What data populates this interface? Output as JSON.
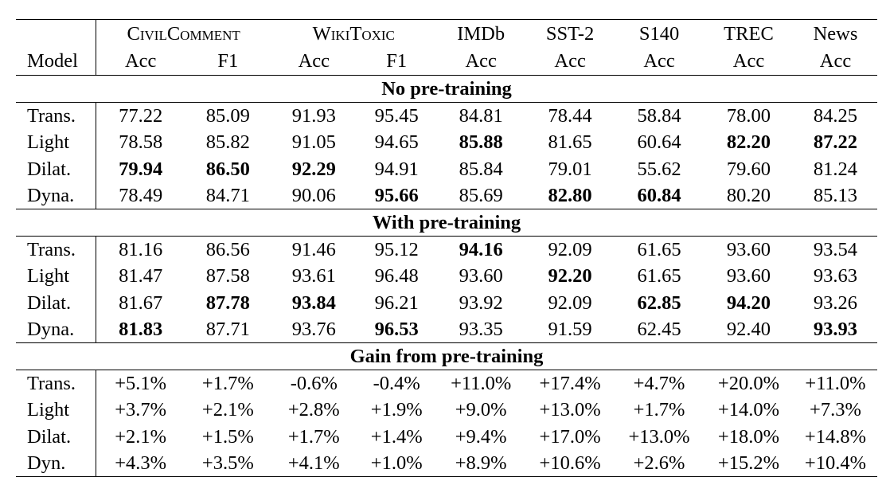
{
  "header": {
    "model_label": "Model",
    "groups": [
      {
        "name": "CivilComment",
        "span": 2,
        "small_caps": true
      },
      {
        "name": "WikiToxic",
        "span": 2,
        "small_caps": true
      },
      {
        "name": "IMDb",
        "span": 1,
        "small_caps": false
      },
      {
        "name": "SST-2",
        "span": 1,
        "small_caps": false
      },
      {
        "name": "S140",
        "span": 1,
        "small_caps": false
      },
      {
        "name": "TREC",
        "span": 1,
        "small_caps": false
      },
      {
        "name": "News",
        "span": 1,
        "small_caps": false
      }
    ],
    "metrics": [
      "Acc",
      "F1",
      "Acc",
      "F1",
      "Acc",
      "Acc",
      "Acc",
      "Acc",
      "Acc"
    ]
  },
  "sections": [
    {
      "title": "No pre-training",
      "rows": [
        {
          "model": "Trans.",
          "values": [
            "77.22",
            "85.09",
            "91.93",
            "95.45",
            "84.81",
            "78.44",
            "58.84",
            "78.00",
            "84.25"
          ],
          "bold": []
        },
        {
          "model": "Light",
          "values": [
            "78.58",
            "85.82",
            "91.05",
            "94.65",
            "85.88",
            "81.65",
            "60.64",
            "82.20",
            "87.22"
          ],
          "bold": [
            4,
            7,
            8
          ]
        },
        {
          "model": "Dilat.",
          "values": [
            "79.94",
            "86.50",
            "92.29",
            "94.91",
            "85.84",
            "79.01",
            "55.62",
            "79.60",
            "81.24"
          ],
          "bold": [
            0,
            1,
            2
          ]
        },
        {
          "model": "Dyna.",
          "values": [
            "78.49",
            "84.71",
            "90.06",
            "95.66",
            "85.69",
            "82.80",
            "60.84",
            "80.20",
            "85.13"
          ],
          "bold": [
            3,
            5,
            6
          ]
        }
      ]
    },
    {
      "title": "With pre-training",
      "rows": [
        {
          "model": "Trans.",
          "values": [
            "81.16",
            "86.56",
            "91.46",
            "95.12",
            "94.16",
            "92.09",
            "61.65",
            "93.60",
            "93.54"
          ],
          "bold": [
            4
          ]
        },
        {
          "model": "Light",
          "values": [
            "81.47",
            "87.58",
            "93.61",
            "96.48",
            "93.60",
            "92.20",
            "61.65",
            "93.60",
            "93.63"
          ],
          "bold": [
            5
          ]
        },
        {
          "model": "Dilat.",
          "values": [
            "81.67",
            "87.78",
            "93.84",
            "96.21",
            "93.92",
            "92.09",
            "62.85",
            "94.20",
            "93.26"
          ],
          "bold": [
            1,
            2,
            6,
            7
          ]
        },
        {
          "model": "Dyna.",
          "values": [
            "81.83",
            "87.71",
            "93.76",
            "96.53",
            "93.35",
            "91.59",
            "62.45",
            "92.40",
            "93.93"
          ],
          "bold": [
            0,
            3,
            8
          ]
        }
      ]
    },
    {
      "title": "Gain from pre-training",
      "rows": [
        {
          "model": "Trans.",
          "values": [
            "+5.1%",
            "+1.7%",
            "-0.6%",
            "-0.4%",
            "+11.0%",
            "+17.4%",
            "+4.7%",
            "+20.0%",
            "+11.0%"
          ],
          "bold": []
        },
        {
          "model": "Light",
          "values": [
            "+3.7%",
            "+2.1%",
            "+2.8%",
            "+1.9%",
            "+9.0%",
            "+13.0%",
            "+1.7%",
            "+14.0%",
            "+7.3%"
          ],
          "bold": []
        },
        {
          "model": "Dilat.",
          "values": [
            "+2.1%",
            "+1.5%",
            "+1.7%",
            "+1.4%",
            "+9.4%",
            "+17.0%",
            "+13.0%",
            "+18.0%",
            "+14.8%"
          ],
          "bold": []
        },
        {
          "model": "Dyn.",
          "values": [
            "+4.3%",
            "+3.5%",
            "+4.1%",
            "+1.0%",
            "+8.9%",
            "+10.6%",
            "+2.6%",
            "+15.2%",
            "+10.4%"
          ],
          "bold": []
        }
      ]
    }
  ]
}
